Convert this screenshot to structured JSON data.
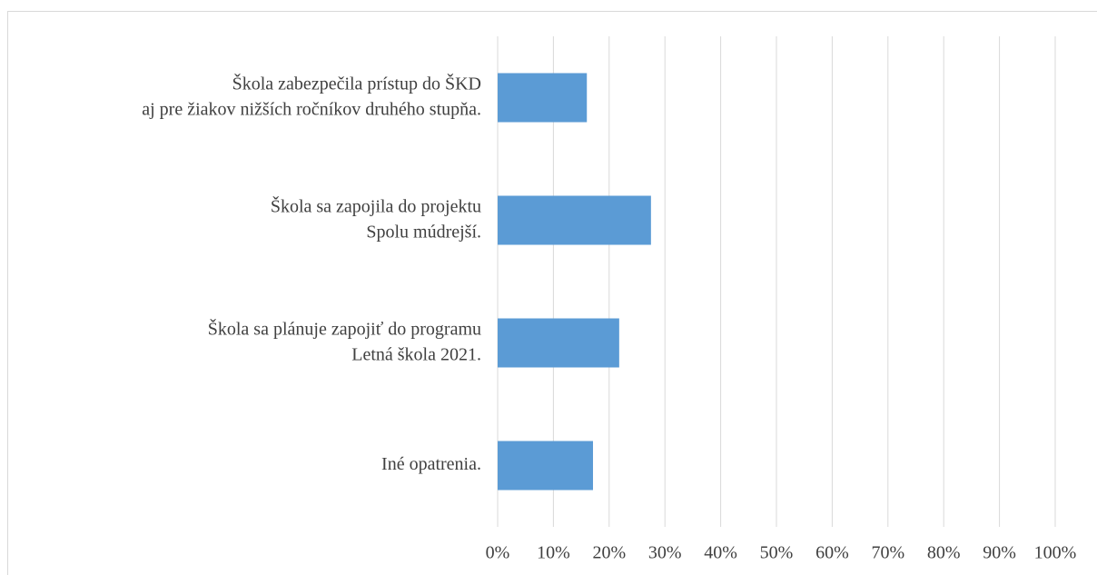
{
  "chart_data": {
    "type": "hbar",
    "categories": [
      "Škola zabezpečila prístup do ŠKD\naj pre žiakov nižších ročníkov druhého stupňa.",
      "Škola sa zapojila do projektu\nSpolu múdrejší.",
      "Škola sa plánuje zapojiť do programu\nLetná škola 2021.",
      "Iné opatrenia."
    ],
    "values": [
      16,
      27.5,
      21.8,
      17.1
    ],
    "color": "#5b9bd5",
    "xlim": [
      0,
      100
    ],
    "xticks": [
      {
        "value": 0,
        "label": "0%"
      },
      {
        "value": 10,
        "label": "10%"
      },
      {
        "value": 20,
        "label": "20%"
      },
      {
        "value": 30,
        "label": "30%"
      },
      {
        "value": 40,
        "label": "40%"
      },
      {
        "value": 50,
        "label": "50%"
      },
      {
        "value": 60,
        "label": "60%"
      },
      {
        "value": 70,
        "label": "70%"
      },
      {
        "value": 80,
        "label": "80%"
      },
      {
        "value": 90,
        "label": "90%"
      },
      {
        "value": 100,
        "label": "100%"
      }
    ],
    "grid": true
  }
}
